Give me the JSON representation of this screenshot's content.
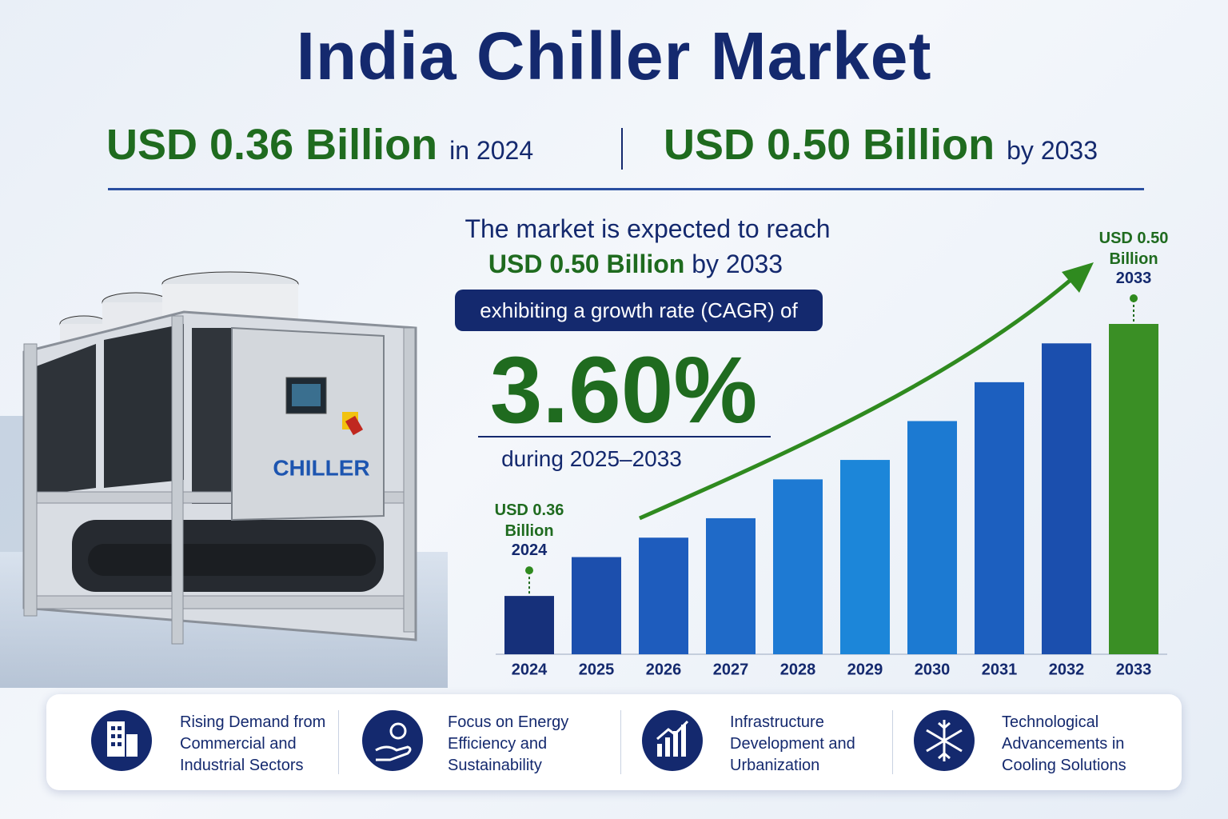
{
  "header": {
    "title": "India Chiller Market",
    "stats": [
      {
        "value": "USD 0.36 Billion",
        "suffix": "in 2024"
      },
      {
        "value": "USD 0.50 Billion",
        "suffix": "by 2033"
      }
    ]
  },
  "highlight": {
    "intro": "The market is expected to reach",
    "target_value": "USD 0.50 Billion",
    "target_suffix": "by 2033",
    "cagr_label": "exhibiting a growth rate (CAGR) of",
    "cagr_value": "3.60%",
    "period": "during 2025–2033"
  },
  "image": {
    "label": "CHILLER"
  },
  "chart_data": {
    "type": "bar",
    "categories": [
      "2024",
      "2025",
      "2026",
      "2027",
      "2028",
      "2029",
      "2030",
      "2031",
      "2032",
      "2033"
    ],
    "values": [
      0.36,
      0.38,
      0.39,
      0.4,
      0.42,
      0.43,
      0.45,
      0.47,
      0.49,
      0.5
    ],
    "value_labels": [
      "USD 0.36 Billion",
      null,
      null,
      null,
      null,
      null,
      null,
      null,
      null,
      "USD 0.50 Billion"
    ],
    "colors": [
      "#16307a",
      "#1c4fad",
      "#1e5cbd",
      "#1f6ac8",
      "#1e7ad3",
      "#1c86d9",
      "#1c7ad2",
      "#1c5fbf",
      "#1b4fae",
      "#3a8f25"
    ],
    "ylim": [
      0.33,
      0.5
    ]
  },
  "drivers": [
    {
      "lines": [
        "Rising Demand from",
        "Commercial and",
        "Industrial Sectors"
      ]
    },
    {
      "lines": [
        "Focus on Energy",
        "Efficiency and",
        "Sustainability"
      ]
    },
    {
      "lines": [
        "Infrastructure",
        "Development and",
        "Urbanization"
      ]
    },
    {
      "lines": [
        "Technological",
        "Advancements in",
        "Cooling Solutions"
      ]
    }
  ]
}
